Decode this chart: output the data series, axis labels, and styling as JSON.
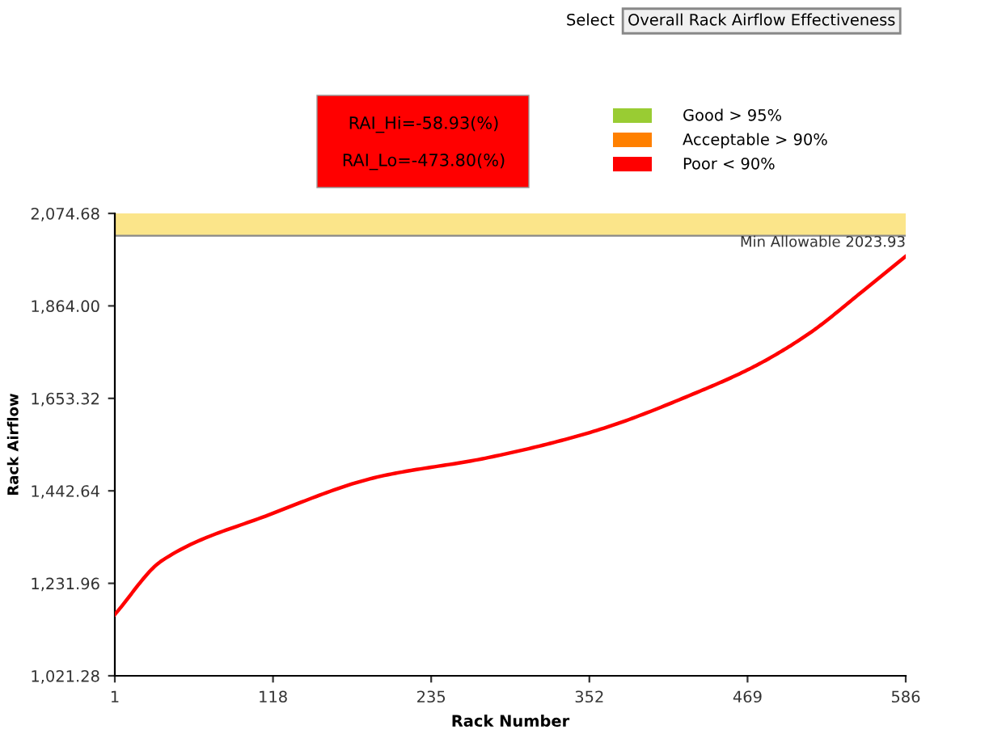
{
  "chart_data": {
    "type": "line",
    "title": "Overall Rack Airflow Effectiveness",
    "xlabel": "Rack Number",
    "ylabel": "Rack Airflow",
    "annotations": [
      "Select",
      "RAI_Hi=-58.93(%)",
      "RAI_Lo=-473.80(%)",
      "Good > 95%",
      "Acceptable > 90%",
      "Poor < 90%"
    ],
    "x": [
      1,
      36,
      115,
      195,
      275,
      355,
      434,
      474,
      514,
      554,
      586
    ],
    "series": [
      {
        "color": "#ff0000",
        "values": [
          1161,
          1284,
          1388,
          1474,
          1517,
          1578,
          1670,
          1726,
          1800,
          1897,
          1977
        ]
      }
    ],
    "xlim": [
      1,
      586
    ],
    "xticks": [
      1,
      118,
      235,
      352,
      469,
      586
    ],
    "ylim": [
      1021.28,
      2074.68
    ],
    "yticks": [
      {
        "value": 1021.28,
        "label": "1,021.28"
      },
      {
        "value": 1231.96,
        "label": "1,231.96"
      },
      {
        "value": 1442.64,
        "label": "1,442.64"
      },
      {
        "value": 1653.32,
        "label": "1,653.32"
      },
      {
        "value": 1864.0,
        "label": "1,864.00"
      },
      {
        "value": 2074.68,
        "label": "2,074.68"
      }
    ],
    "bands": [
      {
        "axis": "y",
        "from": 2023.93,
        "to": 2074.68,
        "label": "Min Allowable 2023.93",
        "color": "#fbe58a"
      }
    ],
    "ref_lines": [
      {
        "axis": "y",
        "value": 2023.93,
        "color": "#888888"
      }
    ],
    "grid": false,
    "legend": false,
    "marker": "none",
    "line_style": "solid"
  }
}
